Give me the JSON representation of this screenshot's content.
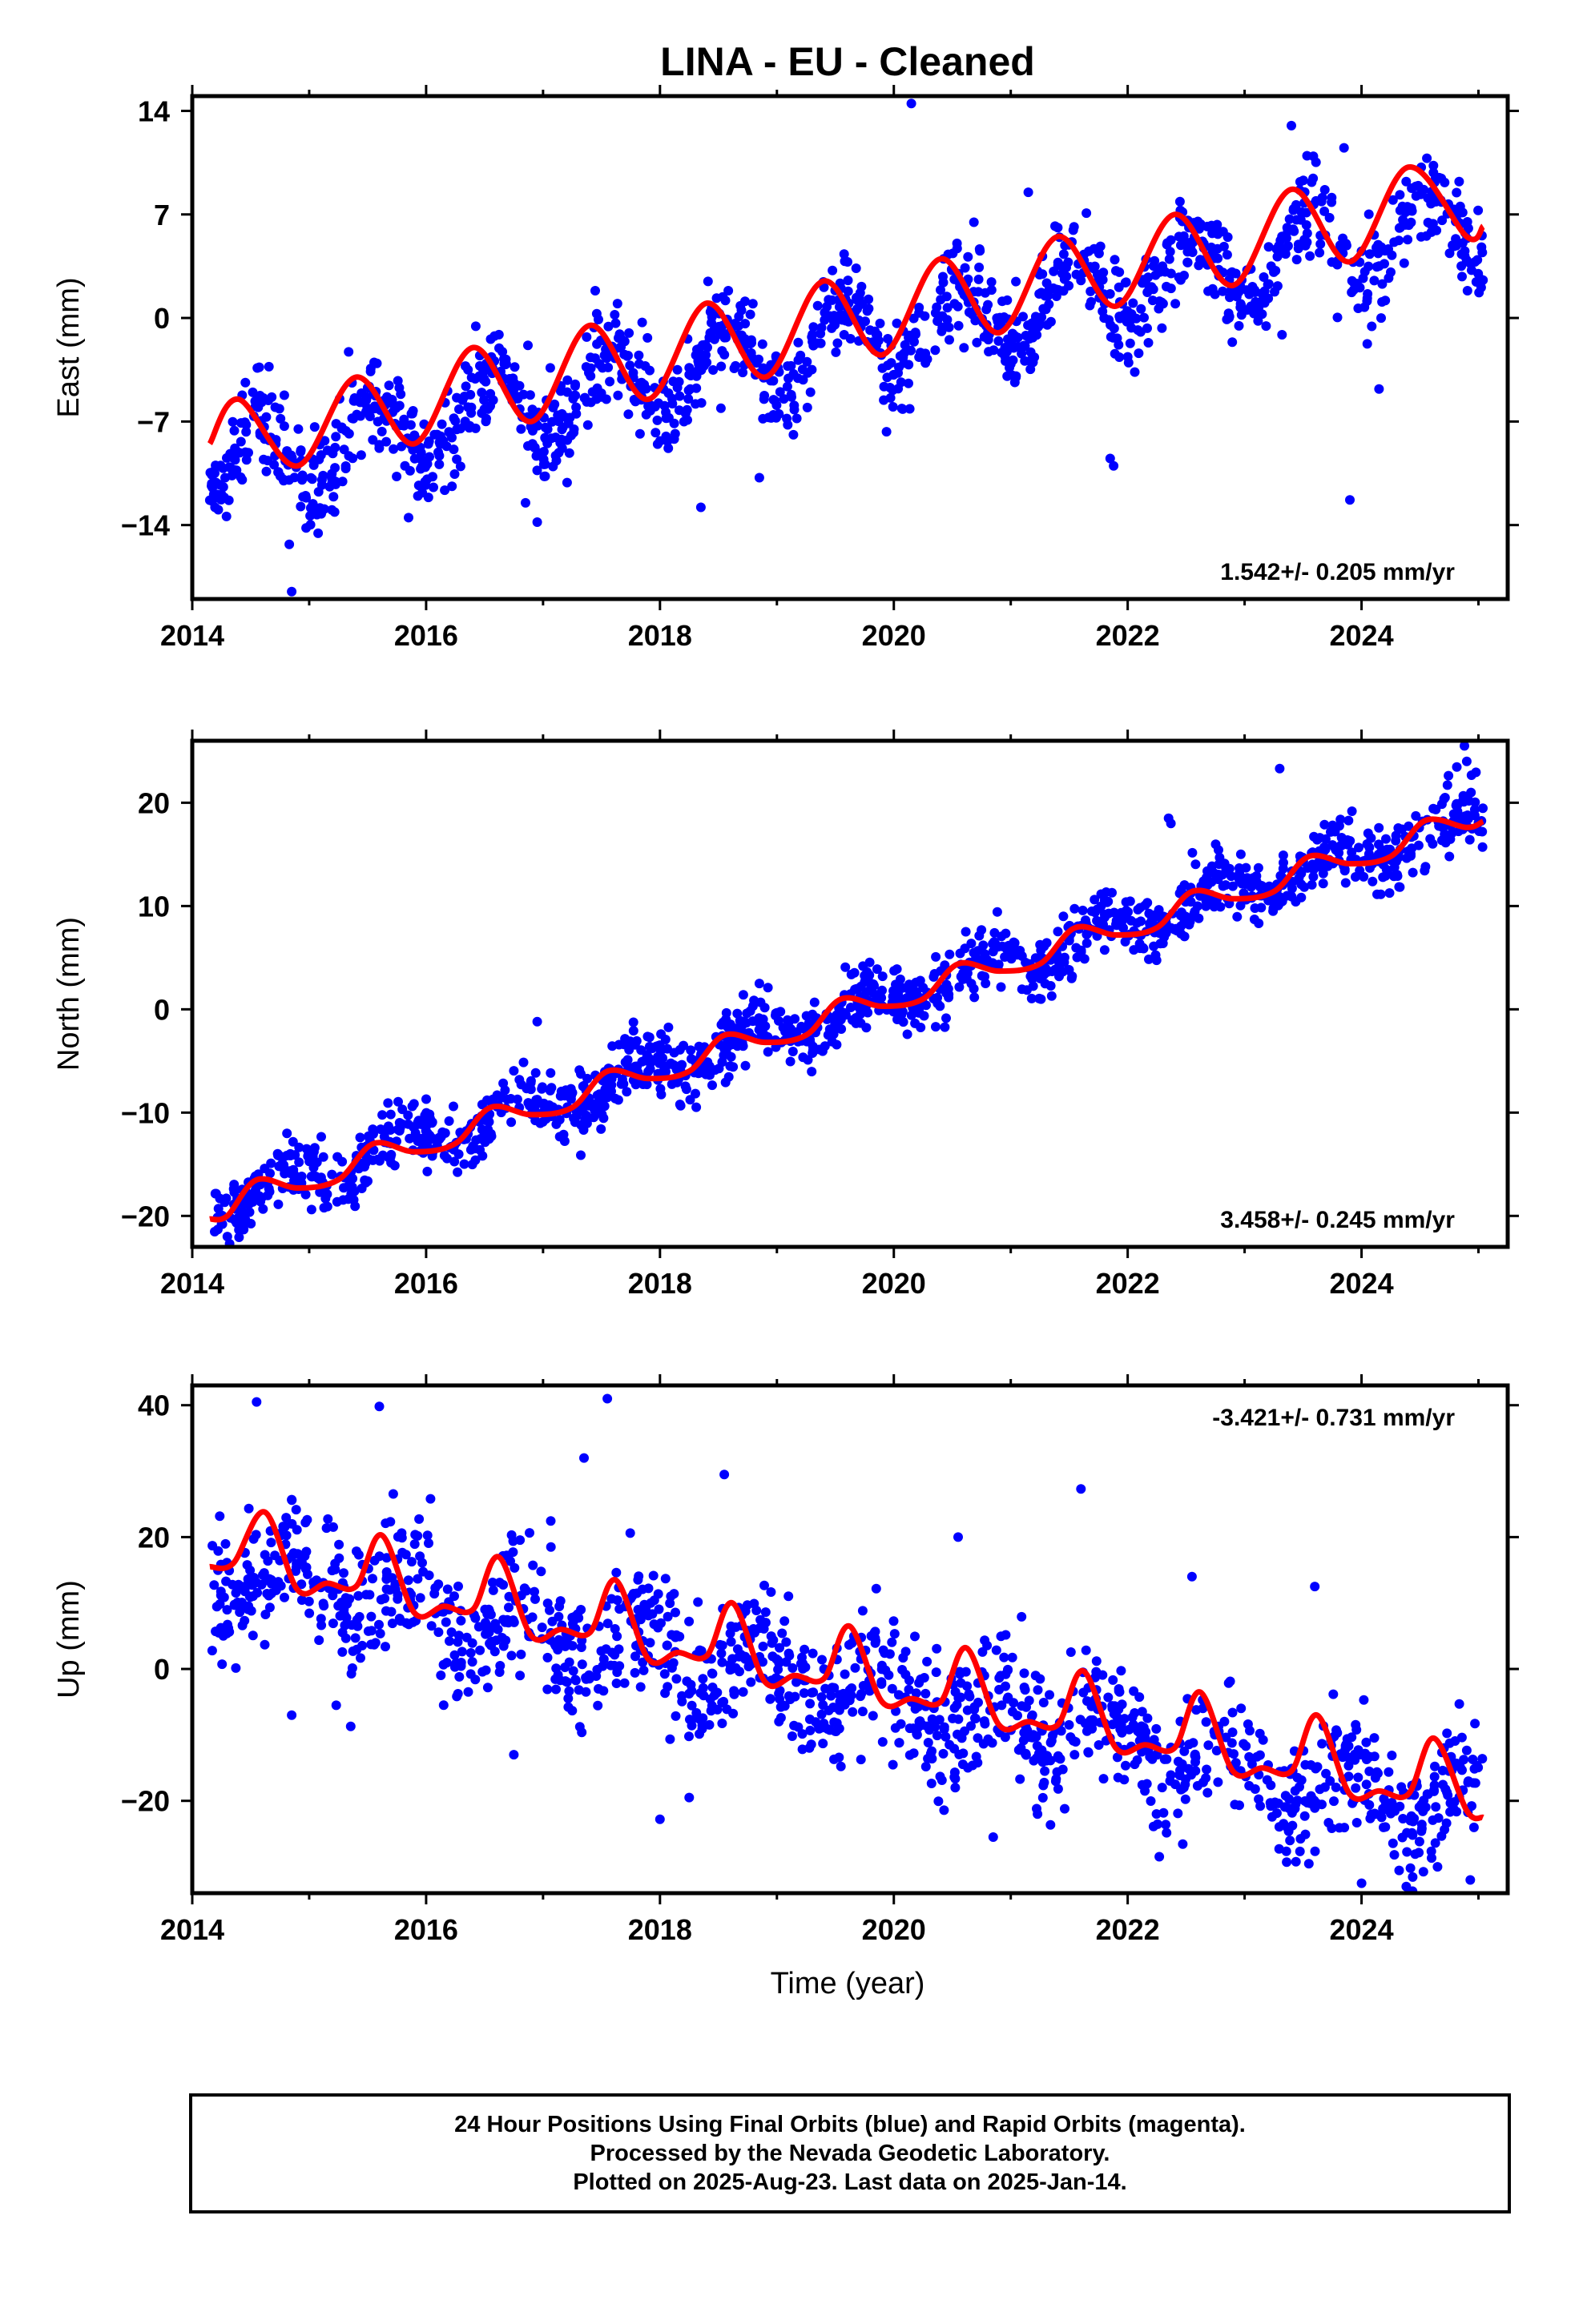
{
  "chart_data": [
    {
      "type": "scatter",
      "title": "LINA  - EU - Cleaned",
      "ylabel": "East (mm)",
      "xlim": [
        2014.0,
        2025.25
      ],
      "ylim": [
        -19,
        15
      ],
      "yticks": [
        -14,
        -7,
        0,
        7,
        14
      ],
      "xticks": [
        2014,
        2016,
        2018,
        2020,
        2022,
        2024
      ],
      "rate_label": "1.542+/- 0.205 mm/yr",
      "rate_position": "bottom-right",
      "series": [
        {
          "kind": "points",
          "color": "#0000ff",
          "trend": -10.0,
          "rate": 1.542,
          "amplitude": 2.6,
          "phase": 0.3,
          "noise": 1.6,
          "x_start": 2014.15,
          "x_end": 2025.04,
          "count": 1400
        },
        {
          "kind": "fit",
          "color": "#ff0000",
          "x": [
            2014.15,
            2014.4,
            2014.9,
            2015.4,
            2015.9,
            2016.4,
            2016.9,
            2017.4,
            2017.9,
            2018.4,
            2018.9,
            2019.4,
            2019.9,
            2020.4,
            2020.9,
            2021.4,
            2021.9,
            2022.4,
            2022.9,
            2023.4,
            2023.9,
            2024.4,
            2024.9,
            2025.04
          ],
          "y": [
            -8.5,
            -5.5,
            -10.0,
            -4.0,
            -8.5,
            -2.0,
            -7.0,
            -0.5,
            -5.5,
            1.0,
            -4.0,
            2.5,
            -2.5,
            4.0,
            -1.0,
            5.5,
            0.8,
            7.0,
            2.2,
            8.7,
            3.8,
            10.2,
            5.5,
            6.2
          ]
        }
      ],
      "outliers": [
        [
          2014.85,
          -18.5
        ],
        [
          2014.83,
          -15.3
        ],
        [
          2015.85,
          -13.5
        ],
        [
          2016.85,
          -12.5
        ],
        [
          2016.95,
          -13.8
        ],
        [
          2018.35,
          -12.8
        ],
        [
          2018.85,
          -10.8
        ],
        [
          2020.15,
          14.5
        ],
        [
          2021.85,
          -9.5
        ],
        [
          2021.88,
          -10.0
        ],
        [
          2023.4,
          13.0
        ],
        [
          2023.85,
          11.5
        ],
        [
          2023.9,
          -12.3
        ],
        [
          2024.15,
          -4.8
        ],
        [
          2021.15,
          8.5
        ]
      ]
    },
    {
      "type": "scatter",
      "ylabel": "North (mm)",
      "xlim": [
        2014.0,
        2025.25
      ],
      "ylim": [
        -23,
        26
      ],
      "yticks": [
        -20,
        -10,
        0,
        10,
        20
      ],
      "xticks": [
        2014,
        2016,
        2018,
        2020,
        2022,
        2024
      ],
      "rate_label": "3.458+/- 0.245 mm/yr",
      "rate_position": "bottom-right",
      "series": [
        {
          "kind": "points",
          "color": "#0000ff",
          "trend": -19.0,
          "rate": 3.458,
          "amplitude": 1.6,
          "phase": 0.55,
          "noise": 1.5,
          "x_start": 2014.15,
          "x_end": 2025.04,
          "count": 1400
        },
        {
          "kind": "fit",
          "color": "#ff0000",
          "x": [
            2014.15,
            2014.3,
            2014.55,
            2014.9,
            2015.25,
            2015.55,
            2015.9,
            2016.25,
            2016.55,
            2016.9,
            2017.25,
            2017.55,
            2017.9,
            2018.25,
            2018.55,
            2018.9,
            2019.25,
            2019.55,
            2019.9,
            2020.25,
            2020.55,
            2020.9,
            2021.25,
            2021.55,
            2021.9,
            2022.25,
            2022.55,
            2022.9,
            2023.25,
            2023.55,
            2023.9,
            2024.25,
            2024.55,
            2024.9,
            2025.04
          ],
          "y": [
            -20.3,
            -20.0,
            -16.5,
            -17.3,
            -16.5,
            -13.0,
            -13.8,
            -13.0,
            -9.5,
            -10.2,
            -9.5,
            -6.0,
            -6.7,
            -6.0,
            -2.5,
            -3.2,
            -2.5,
            1.0,
            0.3,
            1.0,
            4.4,
            3.7,
            4.4,
            7.9,
            7.2,
            7.9,
            11.4,
            10.7,
            11.4,
            14.8,
            14.1,
            14.8,
            18.3,
            17.6,
            18.2
          ]
        }
      ],
      "outliers": [
        [
          2014.3,
          -22.0
        ],
        [
          2022.35,
          18.5
        ],
        [
          2022.37,
          18.0
        ],
        [
          2024.88,
          25.5
        ],
        [
          2024.9,
          24.0
        ],
        [
          2023.3,
          23.3
        ],
        [
          2016.05,
          -11.0
        ],
        [
          2016.95,
          -1.2
        ]
      ]
    },
    {
      "type": "scatter",
      "xlabel": "Time (year)",
      "ylabel": "Up (mm)",
      "xlim": [
        2014.0,
        2025.25
      ],
      "ylim": [
        -34,
        43
      ],
      "yticks": [
        -20,
        0,
        20,
        40
      ],
      "xticks": [
        2014,
        2016,
        2018,
        2020,
        2022,
        2024
      ],
      "rate_label": "-3.421+/- 0.731 mm/yr",
      "rate_position": "top-right",
      "series": [
        {
          "kind": "points",
          "color": "#0000ff",
          "trend": 15.5,
          "rate": -3.421,
          "amplitude": 4.5,
          "phase": 0.62,
          "noise": 5.0,
          "x_start": 2014.15,
          "x_end": 2025.04,
          "count": 1400
        },
        {
          "kind": "fit",
          "color": "#ff0000",
          "x": [
            2014.15,
            2014.35,
            2014.62,
            2014.9,
            2015.15,
            2015.4,
            2015.62,
            2015.9,
            2016.15,
            2016.4,
            2016.62,
            2016.9,
            2017.15,
            2017.4,
            2017.62,
            2017.9,
            2018.15,
            2018.4,
            2018.62,
            2018.9,
            2019.15,
            2019.4,
            2019.62,
            2019.9,
            2020.15,
            2020.4,
            2020.62,
            2020.9,
            2021.15,
            2021.4,
            2021.62,
            2021.9,
            2022.15,
            2022.4,
            2022.62,
            2022.9,
            2023.15,
            2023.4,
            2023.62,
            2023.9,
            2024.15,
            2024.4,
            2024.62,
            2024.9,
            2025.04
          ],
          "y": [
            15.5,
            16.0,
            23.8,
            12.0,
            13.0,
            12.5,
            20.3,
            8.5,
            9.5,
            9.0,
            17.0,
            5.0,
            6.0,
            5.5,
            13.5,
            1.5,
            2.5,
            2.0,
            10.0,
            -2.0,
            -1.0,
            -1.5,
            6.5,
            -5.0,
            -4.5,
            -5.0,
            3.2,
            -8.5,
            -8.0,
            -8.5,
            -0.3,
            -12.0,
            -11.5,
            -12.0,
            -3.5,
            -15.5,
            -15.0,
            -15.5,
            -7.0,
            -19.0,
            -18.5,
            -19.0,
            -10.5,
            -21.5,
            -22.5
          ]
        }
      ],
      "outliers": [
        [
          2014.55,
          40.5
        ],
        [
          2015.6,
          39.8
        ],
        [
          2017.55,
          41.0
        ],
        [
          2017.35,
          32.0
        ],
        [
          2018.0,
          -22.8
        ],
        [
          2018.25,
          -19.5
        ],
        [
          2018.55,
          29.5
        ],
        [
          2020.55,
          20.0
        ],
        [
          2021.6,
          27.3
        ],
        [
          2014.85,
          -7.0
        ],
        [
          2016.15,
          -5.5
        ],
        [
          2016.75,
          -13.0
        ],
        [
          2020.85,
          -25.5
        ],
        [
          2022.55,
          14.0
        ],
        [
          2023.6,
          12.5
        ],
        [
          2024.65,
          -30.0
        ],
        [
          2024.93,
          -32.0
        ],
        [
          2024.0,
          -32.5
        ]
      ]
    }
  ],
  "footer": {
    "line1": "24 Hour Positions Using Final Orbits (blue) and Rapid Orbits (magenta).",
    "line2": "Processed by the Nevada Geodetic Laboratory.",
    "line3": "Plotted on 2025-Aug-23. Last data on 2025-Jan-14."
  }
}
